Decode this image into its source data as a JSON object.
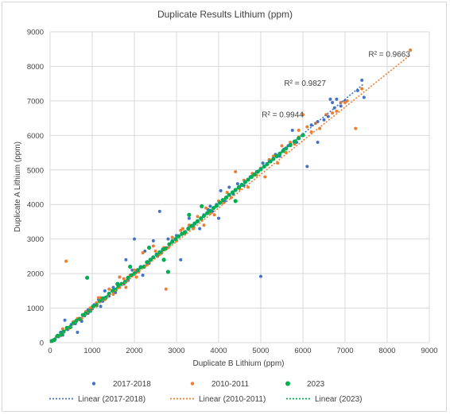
{
  "chart_data": {
    "type": "scatter",
    "title": "Duplicate Results Lithium (ppm)",
    "xlabel": "Duplicate B Lithium (ppm)",
    "ylabel": "Duplicate A Lithium (ppm)",
    "xlim": [
      0,
      9000
    ],
    "ylim": [
      0,
      9000
    ],
    "xticks": [
      "0",
      "1000",
      "2000",
      "3000",
      "4000",
      "5000",
      "6000",
      "7000",
      "8000",
      "9000"
    ],
    "yticks": [
      "0",
      "1000",
      "2000",
      "3000",
      "4000",
      "5000",
      "6000",
      "7000",
      "8000",
      "9000"
    ],
    "grid": true,
    "legend_position": "bottom",
    "series": [
      {
        "name": "2017-2018",
        "color": "#4472c4",
        "points": [
          [
            50,
            40
          ],
          [
            120,
            110
          ],
          [
            200,
            170
          ],
          [
            250,
            300
          ],
          [
            300,
            220
          ],
          [
            350,
            650
          ],
          [
            420,
            380
          ],
          [
            500,
            520
          ],
          [
            600,
            550
          ],
          [
            650,
            300
          ],
          [
            700,
            700
          ],
          [
            750,
            620
          ],
          [
            820,
            780
          ],
          [
            900,
            950
          ],
          [
            1000,
            980
          ],
          [
            1050,
            1100
          ],
          [
            1150,
            1250
          ],
          [
            1250,
            1200
          ],
          [
            1300,
            1500
          ],
          [
            1400,
            1350
          ],
          [
            1500,
            1600
          ],
          [
            1550,
            1450
          ],
          [
            1650,
            1900
          ],
          [
            1750,
            1700
          ],
          [
            1800,
            2400
          ],
          [
            1850,
            1800
          ],
          [
            1950,
            2100
          ],
          [
            2000,
            3000
          ],
          [
            2050,
            2050
          ],
          [
            2150,
            2200
          ],
          [
            2250,
            2650
          ],
          [
            2350,
            2300
          ],
          [
            2450,
            2950
          ],
          [
            2550,
            2500
          ],
          [
            2650,
            2600
          ],
          [
            2700,
            2700
          ],
          [
            2800,
            3000
          ],
          [
            2900,
            2950
          ],
          [
            3000,
            3100
          ],
          [
            3100,
            2400
          ],
          [
            3200,
            3200
          ],
          [
            3300,
            3600
          ],
          [
            3400,
            3350
          ],
          [
            3500,
            3500
          ],
          [
            3550,
            3300
          ],
          [
            3650,
            3700
          ],
          [
            3750,
            3850
          ],
          [
            3850,
            3800
          ],
          [
            3950,
            4000
          ],
          [
            4050,
            4400
          ],
          [
            4150,
            4100
          ],
          [
            4250,
            4500
          ],
          [
            4350,
            4300
          ],
          [
            4450,
            4600
          ],
          [
            4600,
            4550
          ],
          [
            4750,
            4800
          ],
          [
            4900,
            4950
          ],
          [
            5000,
            1920
          ],
          [
            5050,
            5200
          ],
          [
            5200,
            5250
          ],
          [
            5350,
            5450
          ],
          [
            5450,
            5400
          ],
          [
            5550,
            5600
          ],
          [
            5650,
            5700
          ],
          [
            5750,
            6150
          ],
          [
            5850,
            5800
          ],
          [
            6000,
            6000
          ],
          [
            6100,
            5100
          ],
          [
            6200,
            6300
          ],
          [
            6350,
            6400
          ],
          [
            6500,
            6450
          ],
          [
            6600,
            6550
          ],
          [
            6650,
            7050
          ],
          [
            6700,
            6950
          ],
          [
            6750,
            6800
          ],
          [
            6800,
            7050
          ],
          [
            6900,
            6850
          ],
          [
            7000,
            7000
          ],
          [
            7300,
            7300
          ],
          [
            7400,
            7600
          ],
          [
            7450,
            7100
          ],
          [
            2600,
            3800
          ],
          [
            1200,
            1050
          ],
          [
            900,
            850
          ],
          [
            4000,
            3600
          ],
          [
            3800,
            3950
          ],
          [
            2200,
            1950
          ],
          [
            6350,
            5800
          ]
        ]
      },
      {
        "name": "2010-2011",
        "color": "#ed7d31",
        "points": [
          [
            80,
            60
          ],
          [
            150,
            180
          ],
          [
            250,
            200
          ],
          [
            300,
            400
          ],
          [
            380,
            2360
          ],
          [
            450,
            420
          ],
          [
            550,
            600
          ],
          [
            650,
            700
          ],
          [
            750,
            700
          ],
          [
            850,
            900
          ],
          [
            950,
            1000
          ],
          [
            1100,
            1150
          ],
          [
            1200,
            1300
          ],
          [
            1300,
            1250
          ],
          [
            1400,
            1550
          ],
          [
            1500,
            1400
          ],
          [
            1650,
            1600
          ],
          [
            1750,
            1850
          ],
          [
            1800,
            1600
          ],
          [
            1900,
            1950
          ],
          [
            2000,
            2100
          ],
          [
            2100,
            2050
          ],
          [
            2200,
            2600
          ],
          [
            2300,
            2250
          ],
          [
            2400,
            2400
          ],
          [
            2500,
            2650
          ],
          [
            2600,
            2550
          ],
          [
            2700,
            2750
          ],
          [
            2750,
            1550
          ],
          [
            2800,
            2750
          ],
          [
            2900,
            3050
          ],
          [
            3000,
            2950
          ],
          [
            3100,
            3250
          ],
          [
            3200,
            3150
          ],
          [
            3300,
            3400
          ],
          [
            3400,
            3300
          ],
          [
            3500,
            3650
          ],
          [
            3600,
            3550
          ],
          [
            3700,
            3900
          ],
          [
            3800,
            3750
          ],
          [
            3900,
            3700
          ],
          [
            4000,
            4100
          ],
          [
            4100,
            4050
          ],
          [
            4200,
            4350
          ],
          [
            4300,
            4200
          ],
          [
            4400,
            4950
          ],
          [
            4500,
            4450
          ],
          [
            4600,
            4700
          ],
          [
            4700,
            4500
          ],
          [
            4800,
            4900
          ],
          [
            4900,
            4850
          ],
          [
            5000,
            5050
          ],
          [
            5100,
            4800
          ],
          [
            5200,
            5300
          ],
          [
            5300,
            5400
          ],
          [
            5400,
            5200
          ],
          [
            5500,
            5700
          ],
          [
            5600,
            5500
          ],
          [
            5700,
            5800
          ],
          [
            5800,
            5750
          ],
          [
            5900,
            5950
          ],
          [
            6000,
            6600
          ],
          [
            6100,
            6250
          ],
          [
            6200,
            6100
          ],
          [
            6300,
            6350
          ],
          [
            6400,
            6200
          ],
          [
            6550,
            6600
          ],
          [
            6700,
            6650
          ],
          [
            6900,
            6950
          ],
          [
            7000,
            6950
          ],
          [
            7050,
            7000
          ],
          [
            7250,
            6200
          ],
          [
            7400,
            7350
          ],
          [
            8550,
            8470
          ],
          [
            1650,
            1900
          ],
          [
            2450,
            2800
          ],
          [
            3150,
            3300
          ],
          [
            5900,
            6150
          ],
          [
            6800,
            6700
          ],
          [
            1150,
            1300
          ],
          [
            2050,
            1900
          ],
          [
            3650,
            3400
          ]
        ]
      },
      {
        "name": "2023",
        "color": "#00b050",
        "points": [
          [
            40,
            50
          ],
          [
            100,
            80
          ],
          [
            180,
            200
          ],
          [
            260,
            240
          ],
          [
            320,
            320
          ],
          [
            400,
            430
          ],
          [
            480,
            450
          ],
          [
            550,
            560
          ],
          [
            620,
            630
          ],
          [
            700,
            680
          ],
          [
            780,
            800
          ],
          [
            850,
            850
          ],
          [
            880,
            1880
          ],
          [
            950,
            920
          ],
          [
            1020,
            1050
          ],
          [
            1100,
            1080
          ],
          [
            1180,
            1200
          ],
          [
            1250,
            1280
          ],
          [
            1320,
            1300
          ],
          [
            1400,
            1420
          ],
          [
            1480,
            1500
          ],
          [
            1550,
            1530
          ],
          [
            1620,
            1650
          ],
          [
            1700,
            1700
          ],
          [
            1780,
            1760
          ],
          [
            1850,
            1880
          ],
          [
            1930,
            1950
          ],
          [
            2000,
            2000
          ],
          [
            2080,
            2100
          ],
          [
            2150,
            2180
          ],
          [
            2230,
            2200
          ],
          [
            2300,
            2330
          ],
          [
            2380,
            2400
          ],
          [
            2450,
            2470
          ],
          [
            2530,
            2550
          ],
          [
            2600,
            2620
          ],
          [
            2680,
            2700
          ],
          [
            2750,
            2730
          ],
          [
            2830,
            2850
          ],
          [
            2900,
            2920
          ],
          [
            2980,
            3000
          ],
          [
            3050,
            3080
          ],
          [
            3130,
            3150
          ],
          [
            3200,
            3200
          ],
          [
            3280,
            3300
          ],
          [
            3350,
            3380
          ],
          [
            3430,
            3450
          ],
          [
            3500,
            3520
          ],
          [
            3580,
            3600
          ],
          [
            3650,
            3670
          ],
          [
            3730,
            3750
          ],
          [
            3800,
            3820
          ],
          [
            3880,
            3900
          ],
          [
            3950,
            3960
          ],
          [
            4030,
            4050
          ],
          [
            4100,
            4130
          ],
          [
            4180,
            4200
          ],
          [
            4250,
            4280
          ],
          [
            4330,
            4350
          ],
          [
            4400,
            4420
          ],
          [
            4480,
            4500
          ],
          [
            4550,
            4570
          ],
          [
            4630,
            4650
          ],
          [
            4700,
            4720
          ],
          [
            4780,
            4800
          ],
          [
            4850,
            4870
          ],
          [
            4930,
            4950
          ],
          [
            5000,
            5020
          ],
          [
            5080,
            5100
          ],
          [
            5150,
            5170
          ],
          [
            5230,
            5250
          ],
          [
            5300,
            5320
          ],
          [
            5380,
            5400
          ],
          [
            5450,
            5470
          ],
          [
            5530,
            5550
          ],
          [
            5600,
            5620
          ],
          [
            5700,
            5720
          ],
          [
            5800,
            5820
          ],
          [
            5900,
            5920
          ],
          [
            6000,
            6010
          ],
          [
            2800,
            2050
          ],
          [
            1900,
            2200
          ],
          [
            3600,
            3950
          ],
          [
            4400,
            4100
          ],
          [
            2350,
            2750
          ],
          [
            3300,
            3700
          ],
          [
            1600,
            1700
          ],
          [
            2700,
            2400
          ]
        ]
      }
    ],
    "trendlines": [
      {
        "name": "Linear (2017-2018)",
        "color": "#4472c4",
        "x": [
          0,
          7450
        ],
        "y": [
          0,
          7500
        ],
        "r2": "R² = 0.9827"
      },
      {
        "name": "Linear (2010-2011)",
        "color": "#ed7d31",
        "x": [
          0,
          8550
        ],
        "y": [
          0,
          8330
        ],
        "r2": "R² = 0.9663"
      },
      {
        "name": "Linear (2023)",
        "color": "#00b050",
        "x": [
          0,
          6050
        ],
        "y": [
          0,
          6070
        ],
        "r2": "R² = 0.9944"
      }
    ]
  }
}
